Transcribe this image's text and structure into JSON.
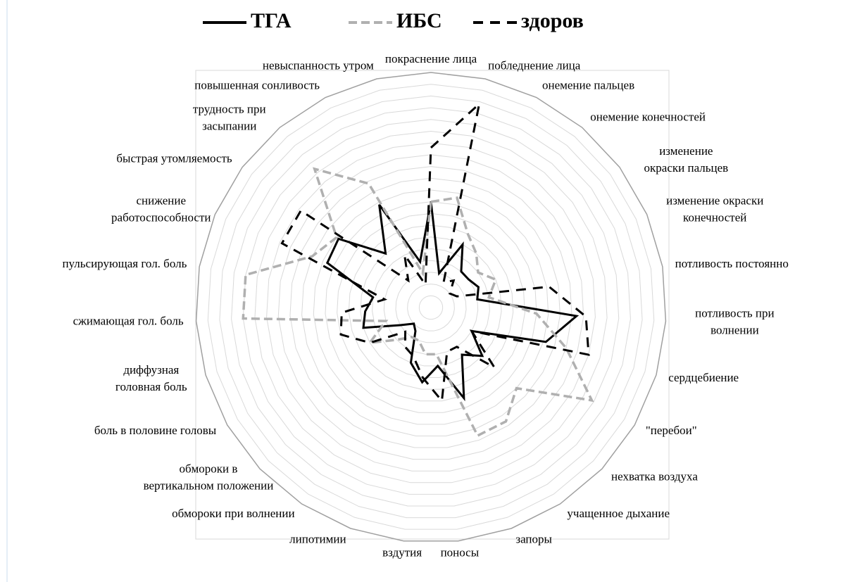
{
  "chart_data": {
    "type": "radar",
    "categories": [
      "покраснение лица",
      "побледнение лица",
      "онемение пальцев",
      "онемение конечностей",
      "изменение окраски пальцев",
      "изменение окраски конечностей",
      "потливость постоянно",
      "потливость при волнении",
      "сердцебиение",
      "\"перебои\"",
      "нехватка воздуха",
      "учащенное дыхание",
      "запоры",
      "поносы",
      "вздутия",
      "липотимии",
      "обмороки при волнении",
      "обмороки в  вертикальном положении",
      "боль в половине головы",
      "диффузная головная боль",
      "сжимающая гол. боль",
      "пульсирующая гол. боль",
      "снижение работоспособности",
      "быстрая утомляемость",
      "трудность при засыпании",
      "повышенная сонливость",
      "невыспанность утром"
    ],
    "series": [
      {
        "name": "ТГА",
        "color": "#000000",
        "dash": "solid",
        "values": [
          45,
          15,
          30,
          20,
          20,
          22,
          20,
          62,
          51,
          20,
          30,
          24,
          41,
          25,
          32,
          25,
          12,
          10,
          15,
          30,
          28,
          25,
          48,
          49,
          30,
          49,
          20
        ]
      },
      {
        "name": "ИБС",
        "color": "#b0b0b0",
        "dash": "dash",
        "values": [
          45,
          48,
          35,
          30,
          25,
          30,
          25,
          45,
          60,
          79,
          50,
          58,
          58,
          20,
          20,
          15,
          15,
          20,
          30,
          20,
          80,
          80,
          55,
          50,
          77,
          59,
          15
        ]
      },
      {
        "name": "здоров",
        "color": "#000000",
        "dash": "longdash",
        "values": [
          68,
          89,
          12,
          15,
          10,
          12,
          51,
          66,
          70,
          20,
          37,
          20,
          20,
          40,
          30,
          22,
          20,
          15,
          30,
          40,
          38,
          20,
          69,
          69,
          15,
          25,
          10
        ]
      }
    ],
    "ylim": [
      0,
      100
    ],
    "yticks": [
      0,
      5,
      10,
      15,
      20,
      25,
      30,
      35,
      40,
      45,
      50,
      55,
      60,
      65,
      70,
      75,
      80,
      85,
      90,
      95,
      100
    ],
    "grid": true
  }
}
